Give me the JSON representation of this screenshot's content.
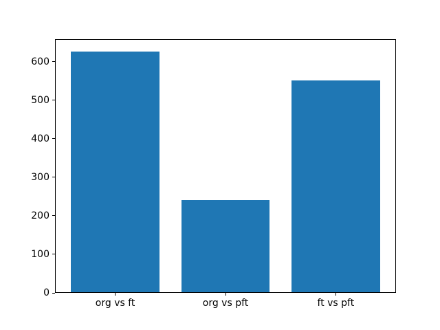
{
  "chart_data": {
    "type": "bar",
    "title": "",
    "xlabel": "",
    "ylabel": "",
    "categories": [
      "org vs ft",
      "org vs pft",
      "ft vs pft"
    ],
    "values": [
      627,
      241,
      553
    ],
    "yticks": [
      0,
      100,
      200,
      300,
      400,
      500,
      600
    ],
    "ylim": [
      0,
      658
    ],
    "bar_color": "#1f77b4",
    "bar_width_fraction": 0.8,
    "grid": false,
    "legend": null,
    "axis_color": "#000000",
    "background_color": "#ffffff"
  }
}
